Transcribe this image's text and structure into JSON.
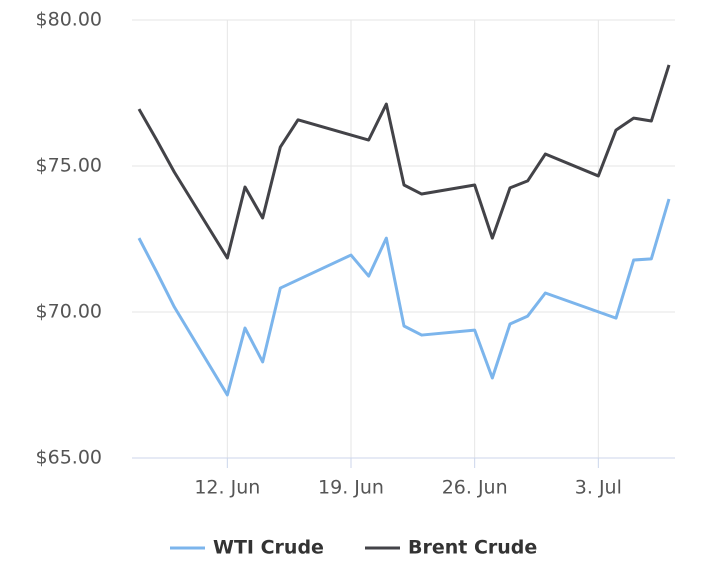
{
  "chart_data": {
    "type": "line",
    "xlim": [
      "06-07",
      "07-07"
    ],
    "xticks": [
      {
        "value": "06-12",
        "label": "12. Jun"
      },
      {
        "value": "06-19",
        "label": "19. Jun"
      },
      {
        "value": "06-26",
        "label": "26. Jun"
      },
      {
        "value": "07-03",
        "label": "3. Jul"
      }
    ],
    "ylim": [
      65,
      80
    ],
    "yticks": [
      {
        "value": 65,
        "label": "$65.00"
      },
      {
        "value": 70,
        "label": "$70.00"
      },
      {
        "value": 75,
        "label": "$75.00"
      },
      {
        "value": 80,
        "label": "$80.00"
      }
    ],
    "grid": true,
    "legend": "bottom",
    "series": [
      {
        "name": "WTI Crude",
        "color": "#7cb5ec",
        "x": [
          "06-07",
          "06-08",
          "06-09",
          "06-12",
          "06-13",
          "06-14",
          "06-15",
          "06-19",
          "06-20",
          "06-21",
          "06-22",
          "06-23",
          "06-26",
          "06-27",
          "06-28",
          "06-29",
          "06-30",
          "07-04",
          "07-05",
          "07-06",
          "07-07"
        ],
        "values": [
          72.53,
          71.37,
          70.17,
          67.16,
          69.45,
          68.29,
          70.82,
          71.95,
          71.23,
          72.53,
          69.52,
          69.21,
          69.38,
          67.74,
          69.59,
          69.86,
          70.65,
          69.79,
          71.78,
          71.82,
          73.87
        ]
      },
      {
        "name": "Brent Crude",
        "color": "#434348",
        "x": [
          "06-07",
          "06-08",
          "06-09",
          "06-12",
          "06-13",
          "06-14",
          "06-15",
          "06-16",
          "06-20",
          "06-21",
          "06-22",
          "06-23",
          "06-26",
          "06-27",
          "06-28",
          "06-29",
          "06-30",
          "07-03",
          "07-04",
          "07-05",
          "07-06",
          "07-07"
        ],
        "values": [
          76.95,
          75.89,
          74.79,
          71.85,
          74.28,
          73.22,
          75.65,
          76.58,
          75.89,
          77.12,
          74.35,
          74.04,
          74.35,
          72.53,
          74.25,
          74.49,
          75.41,
          74.66,
          76.23,
          76.64,
          76.54,
          78.46
        ]
      }
    ]
  }
}
